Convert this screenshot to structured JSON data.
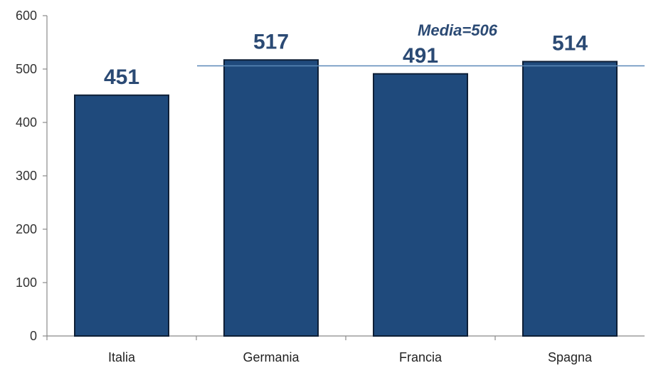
{
  "chart_data": {
    "type": "bar",
    "categories": [
      "Italia",
      "Germania",
      "Francia",
      "Spagna"
    ],
    "values": [
      451,
      517,
      491,
      514
    ],
    "data_labels": [
      "451",
      "517",
      "491",
      "514"
    ],
    "ylim": [
      0,
      600
    ],
    "yticks": [
      0,
      100,
      200,
      300,
      400,
      500,
      600
    ],
    "title": "",
    "xlabel": "",
    "ylabel": "",
    "grid": false,
    "legend": "none",
    "reference_line": {
      "value": 506,
      "label": "Media=506"
    },
    "colors": {
      "bar_fill": "#1f4a7c",
      "bar_stroke": "#0e1f36",
      "reference_line": "#5a88b8",
      "data_label": "#2b4a74"
    }
  }
}
